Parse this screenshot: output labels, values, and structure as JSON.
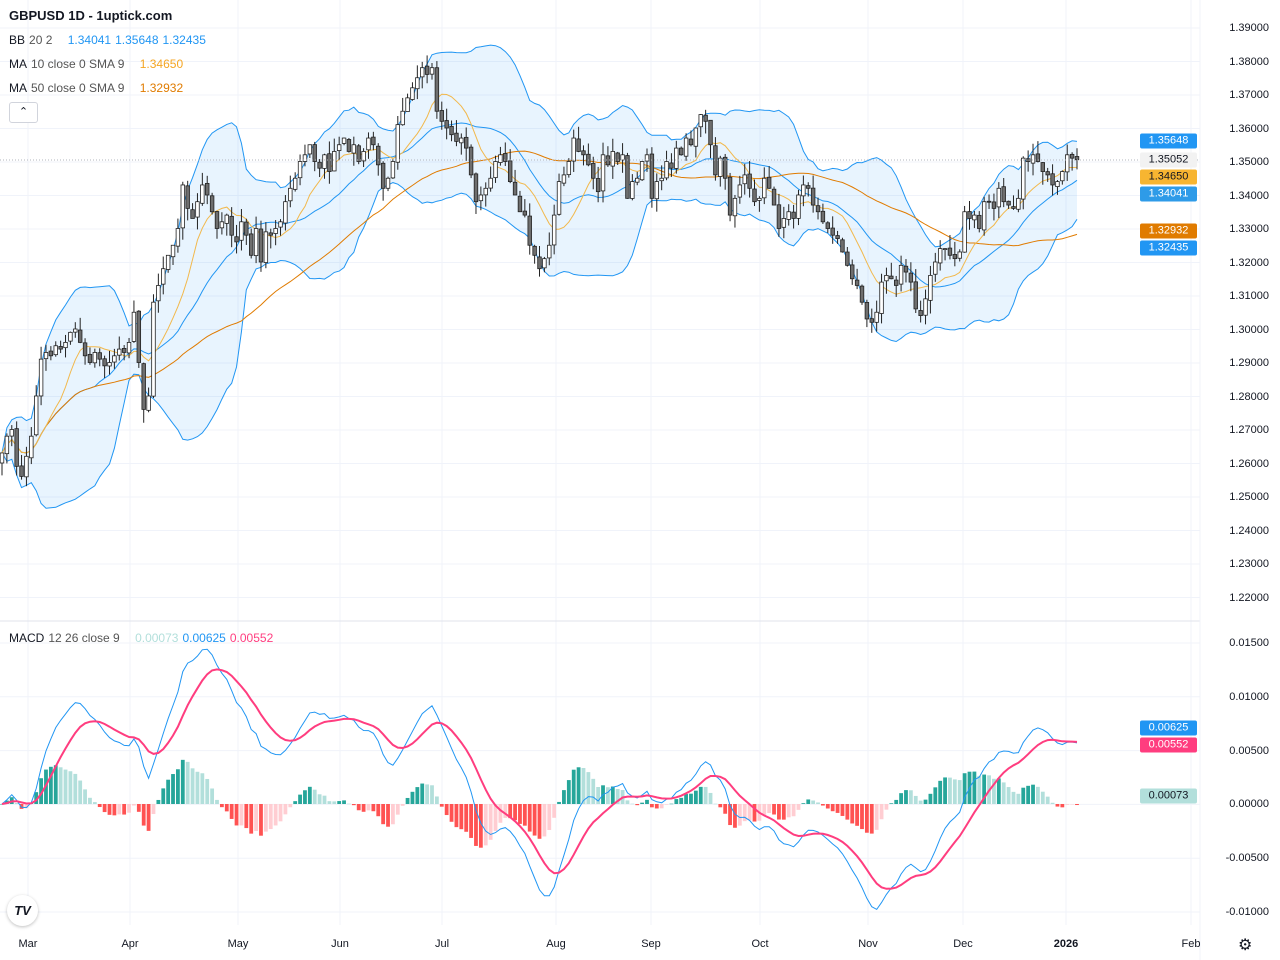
{
  "header": {
    "title": "GBPUSD 1D - 1uptick.com"
  },
  "legend": {
    "bb": {
      "label": "BB",
      "params": "20 2",
      "basis": "1.34041",
      "upper": "1.35648",
      "lower": "1.32435"
    },
    "ma10": {
      "label": "MA",
      "params": "10 close 0 SMA 9",
      "value": "1.34650"
    },
    "ma50": {
      "label": "MA",
      "params": "50 close 0 SMA 9",
      "value": "1.32932"
    },
    "macd": {
      "label": "MACD",
      "params": "12 26 close 9",
      "hist": "0.00073",
      "macd": "0.00625",
      "signal": "0.00552"
    },
    "collapse_icon": "chevron-up-icon"
  },
  "price_axis": {
    "labels": [
      "1.39000",
      "1.38000",
      "1.37000",
      "1.36000",
      "1.35000",
      "1.34000",
      "1.33000",
      "1.32000",
      "1.31000",
      "1.30000",
      "1.29000",
      "1.28000",
      "1.27000",
      "1.26000",
      "1.25000",
      "1.24000",
      "1.23000",
      "1.22000"
    ],
    "tags": {
      "bb_upper": "1.35648",
      "last": "1.35052",
      "ma10": "1.34650",
      "bb_basis": "1.34041",
      "ma50": "1.32932",
      "bb_lower": "1.32435"
    }
  },
  "macd_axis": {
    "labels": [
      "0.01500",
      "0.01000",
      "0.00500",
      "0.00000",
      "-0.00500",
      "-0.01000"
    ],
    "tags": {
      "macd": "0.00625",
      "signal": "0.00552",
      "hist": "0.00073"
    }
  },
  "time_axis": {
    "labels": [
      "Mar",
      "Apr",
      "May",
      "Jun",
      "Jul",
      "Aug",
      "Sep",
      "Oct",
      "Nov",
      "Dec",
      "2026",
      "Feb"
    ]
  },
  "colors": {
    "up": "#ffffff",
    "down": "#6e6e6e",
    "bb": "#2196f3",
    "bb_fill": "rgba(33,150,243,0.1)",
    "ma10": "#f2b84b",
    "ma50": "#e07b00",
    "macd": "#2196f3",
    "signal": "#ff3d7f",
    "hist_up_strong": "#26a69a",
    "hist_up_weak": "#b2dfdb",
    "hist_down_strong": "#ff5252",
    "hist_down_weak": "#ffcdd2"
  },
  "icons": {
    "logo": "tradingview-logo",
    "settings": "gear-icon"
  },
  "chart_data": {
    "type": "candlestick",
    "symbol": "GBPUSD",
    "interval": "1D",
    "ylim": [
      1.215,
      1.39
    ],
    "macd_ylim": [
      -0.0112,
      0.0155
    ],
    "grid": true,
    "indicators": [
      "BB 20 2",
      "MA 10",
      "MA 50",
      "MACD 12 26 9"
    ],
    "closes": [
      1.263,
      1.268,
      1.27,
      1.259,
      1.256,
      1.262,
      1.268,
      1.28,
      1.291,
      1.293,
      1.292,
      1.295,
      1.294,
      1.296,
      1.299,
      1.3,
      1.296,
      1.292,
      1.29,
      1.293,
      1.291,
      1.289,
      1.29,
      1.292,
      1.294,
      1.293,
      1.296,
      1.305,
      1.29,
      1.276,
      1.28,
      1.308,
      1.313,
      1.318,
      1.322,
      1.325,
      1.33,
      1.343,
      1.336,
      1.333,
      1.338,
      1.343,
      1.34,
      1.335,
      1.33,
      1.332,
      1.334,
      1.328,
      1.326,
      1.332,
      1.328,
      1.322,
      1.33,
      1.32,
      1.329,
      1.328,
      1.33,
      1.332,
      1.338,
      1.342,
      1.345,
      1.35,
      1.352,
      1.355,
      1.35,
      1.348,
      1.352,
      1.347,
      1.353,
      1.355,
      1.357,
      1.353,
      1.355,
      1.35,
      1.353,
      1.357,
      1.355,
      1.349,
      1.342,
      1.345,
      1.35,
      1.361,
      1.365,
      1.369,
      1.372,
      1.375,
      1.378,
      1.376,
      1.378,
      1.365,
      1.362,
      1.36,
      1.358,
      1.356,
      1.357,
      1.354,
      1.346,
      1.338,
      1.34,
      1.342,
      1.345,
      1.35,
      1.352,
      1.35,
      1.344,
      1.34,
      1.335,
      1.334,
      1.325,
      1.322,
      1.318,
      1.321,
      1.325,
      1.334,
      1.344,
      1.346,
      1.35,
      1.357,
      1.353,
      1.352,
      1.349,
      1.345,
      1.341,
      1.352,
      1.349,
      1.353,
      1.35,
      1.352,
      1.339,
      1.344,
      1.345,
      1.35,
      1.352,
      1.339,
      1.344,
      1.345,
      1.35,
      1.348,
      1.354,
      1.352,
      1.357,
      1.355,
      1.36,
      1.364,
      1.362,
      1.355,
      1.346,
      1.351,
      1.345,
      1.334,
      1.339,
      1.343,
      1.346,
      1.342,
      1.338,
      1.339,
      1.345,
      1.342,
      1.337,
      1.33,
      1.333,
      1.335,
      1.333,
      1.34,
      1.343,
      1.342,
      1.337,
      1.335,
      1.332,
      1.33,
      1.328,
      1.327,
      1.323,
      1.319,
      1.315,
      1.313,
      1.308,
      1.303,
      1.302,
      1.305,
      1.314,
      1.316,
      1.315,
      1.313,
      1.319,
      1.317,
      1.314,
      1.306,
      1.304,
      1.309,
      1.316,
      1.32,
      1.324,
      1.324,
      1.322,
      1.321,
      1.323,
      1.335,
      1.333,
      1.334,
      1.33,
      1.338,
      1.338,
      1.336,
      1.342,
      1.338,
      1.337,
      1.336,
      1.339,
      1.351,
      1.35,
      1.352,
      1.35,
      1.347,
      1.346,
      1.343,
      1.344,
      1.347,
      1.352,
      1.351,
      1.35052
    ]
  }
}
